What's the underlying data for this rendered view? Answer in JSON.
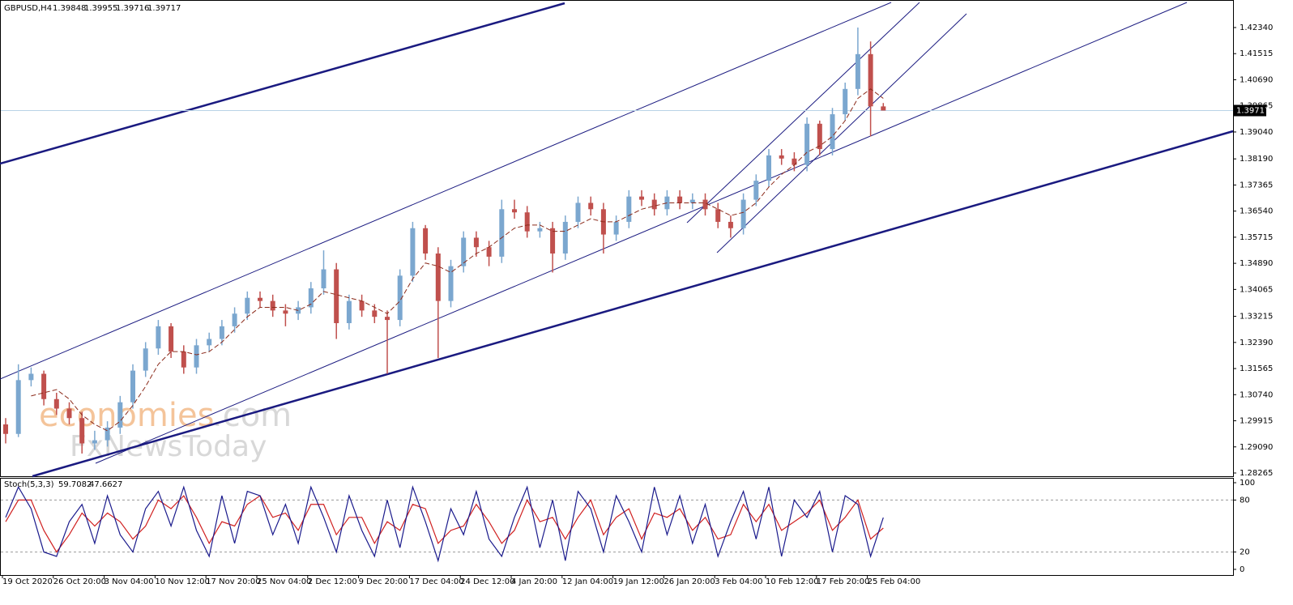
{
  "chart_data": [
    {
      "type": "candlestick",
      "title": "GBPUSD,H4",
      "color_up": "#7ba7cf",
      "color_down": "#c0504d",
      "ma_color": "#8b2a1a",
      "last_line_color": "#b9d3e6",
      "categories": [
        "19 Oct 2020",
        null,
        null,
        null,
        "26 Oct 20:00",
        null,
        null,
        null,
        "3 Nov 04:00",
        null,
        null,
        null,
        "10 Nov 12:00",
        null,
        null,
        null,
        "17 Nov 20:00",
        null,
        null,
        null,
        "25 Nov 04:00",
        null,
        null,
        null,
        "2 Dec 12:00",
        null,
        null,
        null,
        "9 Dec 20:00",
        null,
        null,
        null,
        "17 Dec 04:00",
        null,
        null,
        null,
        "24 Dec 12:00",
        null,
        null,
        null,
        "4 Jan 20:00",
        null,
        null,
        null,
        "12 Jan 04:00",
        null,
        null,
        null,
        "19 Jan 12:00",
        null,
        null,
        null,
        "26 Jan 20:00",
        null,
        null,
        null,
        "3 Feb 04:00",
        null,
        null,
        null,
        "10 Feb 12:00",
        null,
        null,
        null,
        "17 Feb 20:00",
        null,
        null,
        null,
        "25 Feb 04:00",
        null
      ],
      "open": [
        1.298,
        1.295,
        1.312,
        1.314,
        1.306,
        1.303,
        1.3,
        1.292,
        1.293,
        1.297,
        1.305,
        1.315,
        1.322,
        1.329,
        1.321,
        1.316,
        1.323,
        1.325,
        1.329,
        1.333,
        1.338,
        1.337,
        1.334,
        1.333,
        1.335,
        1.341,
        1.347,
        1.33,
        1.337,
        1.334,
        1.332,
        1.331,
        1.345,
        1.36,
        1.352,
        1.337,
        1.348,
        1.357,
        1.354,
        1.351,
        1.366,
        1.365,
        1.359,
        1.36,
        1.352,
        1.362,
        1.368,
        1.366,
        1.358,
        1.362,
        1.37,
        1.369,
        1.366,
        1.37,
        1.368,
        1.369,
        1.366,
        1.362,
        1.36,
        1.369,
        1.375,
        1.383,
        1.382,
        1.38,
        1.393,
        1.385,
        1.396,
        1.404,
        1.415,
        1.39848
      ],
      "high": [
        1.3,
        1.317,
        1.316,
        1.315,
        1.308,
        1.305,
        1.302,
        1.296,
        1.299,
        1.307,
        1.317,
        1.324,
        1.331,
        1.33,
        1.323,
        1.325,
        1.327,
        1.331,
        1.335,
        1.34,
        1.34,
        1.339,
        1.336,
        1.337,
        1.343,
        1.353,
        1.349,
        1.339,
        1.339,
        1.336,
        1.334,
        1.347,
        1.362,
        1.361,
        1.354,
        1.35,
        1.359,
        1.359,
        1.356,
        1.369,
        1.369,
        1.367,
        1.362,
        1.362,
        1.364,
        1.37,
        1.37,
        1.368,
        1.364,
        1.372,
        1.372,
        1.371,
        1.372,
        1.372,
        1.371,
        1.371,
        1.368,
        1.364,
        1.371,
        1.377,
        1.385,
        1.385,
        1.384,
        1.395,
        1.394,
        1.398,
        1.406,
        1.4234,
        1.419,
        1.39955
      ],
      "low": [
        1.292,
        1.294,
        1.31,
        1.304,
        1.301,
        1.298,
        1.2888,
        1.29,
        1.291,
        1.295,
        1.303,
        1.313,
        1.32,
        1.319,
        1.314,
        1.314,
        1.321,
        1.323,
        1.327,
        1.331,
        1.335,
        1.332,
        1.329,
        1.331,
        1.333,
        1.339,
        1.325,
        1.328,
        1.332,
        1.33,
        1.314,
        1.329,
        1.343,
        1.35,
        1.319,
        1.335,
        1.346,
        1.351,
        1.348,
        1.349,
        1.363,
        1.357,
        1.357,
        1.346,
        1.35,
        1.36,
        1.364,
        1.352,
        1.356,
        1.36,
        1.367,
        1.364,
        1.364,
        1.366,
        1.366,
        1.364,
        1.36,
        1.357,
        1.358,
        1.367,
        1.373,
        1.38,
        1.378,
        1.378,
        1.383,
        1.383,
        1.394,
        1.402,
        1.389,
        1.39716
      ],
      "close": [
        1.295,
        1.312,
        1.314,
        1.306,
        1.303,
        1.3,
        1.292,
        1.293,
        1.297,
        1.305,
        1.315,
        1.322,
        1.329,
        1.321,
        1.316,
        1.323,
        1.325,
        1.329,
        1.333,
        1.338,
        1.337,
        1.334,
        1.333,
        1.335,
        1.341,
        1.347,
        1.33,
        1.337,
        1.334,
        1.332,
        1.331,
        1.345,
        1.36,
        1.352,
        1.337,
        1.348,
        1.357,
        1.354,
        1.351,
        1.366,
        1.365,
        1.359,
        1.36,
        1.352,
        1.362,
        1.368,
        1.366,
        1.358,
        1.362,
        1.37,
        1.369,
        1.366,
        1.37,
        1.368,
        1.369,
        1.366,
        1.362,
        1.36,
        1.369,
        1.375,
        1.383,
        1.382,
        1.38,
        1.393,
        1.385,
        1.396,
        1.404,
        1.415,
        1.3985,
        1.39717
      ],
      "ma": [
        null,
        null,
        1.307,
        1.308,
        1.309,
        1.306,
        1.301,
        1.298,
        1.296,
        1.299,
        1.304,
        1.31,
        1.317,
        1.321,
        1.321,
        1.32,
        1.321,
        1.324,
        1.328,
        1.332,
        1.335,
        1.335,
        1.335,
        1.334,
        1.336,
        1.34,
        1.339,
        1.338,
        1.337,
        1.335,
        1.333,
        1.337,
        1.344,
        1.349,
        1.348,
        1.346,
        1.349,
        1.352,
        1.354,
        1.357,
        1.36,
        1.361,
        1.361,
        1.359,
        1.359,
        1.361,
        1.363,
        1.362,
        1.362,
        1.364,
        1.366,
        1.367,
        1.368,
        1.368,
        1.368,
        1.368,
        1.366,
        1.364,
        1.365,
        1.368,
        1.373,
        1.377,
        1.38,
        1.384,
        1.386,
        1.389,
        1.394,
        1.401,
        1.404,
        1.401
      ],
      "ylim": [
        1.28163,
        1.4321
      ],
      "yticks": [
        {
          "value": 1.4234,
          "label": "1.42340"
        },
        1.41515,
        {
          "value": 1.4069,
          "label": "1.40690"
        },
        1.39865,
        {
          "value": 1.3904,
          "label": "1.39040"
        },
        {
          "value": 1.3819,
          "label": "1.38190"
        },
        1.37365,
        {
          "value": 1.3654,
          "label": "1.36540"
        },
        1.35715,
        {
          "value": 1.3489,
          "label": "1.34890"
        },
        1.34065,
        1.33215,
        {
          "value": 1.3239,
          "label": "1.32390"
        },
        1.31565,
        {
          "value": 1.3074,
          "label": "1.30740"
        },
        1.29915,
        {
          "value": 1.2909,
          "label": "1.29090"
        },
        1.28265
      ]
    },
    {
      "type": "line",
      "title": "Stoch(5,3,3)",
      "series": [
        {
          "name": "Main",
          "color": "#1a1a8c",
          "values": [
            60,
            95,
            70,
            20,
            15,
            55,
            75,
            30,
            85,
            40,
            20,
            70,
            90,
            50,
            95,
            45,
            15,
            85,
            30,
            90,
            85,
            40,
            75,
            30,
            95,
            60,
            20,
            85,
            45,
            15,
            80,
            25,
            95,
            55,
            10,
            70,
            40,
            90,
            35,
            15,
            60,
            95,
            25,
            80,
            10,
            90,
            70,
            20,
            85,
            55,
            20,
            95,
            40,
            85,
            30,
            75,
            15,
            55,
            90,
            35,
            95,
            15,
            80,
            60,
            90,
            20,
            85,
            75,
            15,
            59.7082
          ]
        },
        {
          "name": "Signal",
          "color": "#d02020",
          "values": [
            55,
            80,
            80,
            45,
            20,
            40,
            65,
            50,
            65,
            55,
            35,
            50,
            80,
            70,
            85,
            60,
            30,
            55,
            50,
            75,
            85,
            60,
            65,
            45,
            75,
            75,
            40,
            60,
            60,
            30,
            55,
            45,
            75,
            70,
            30,
            45,
            50,
            75,
            55,
            30,
            45,
            80,
            55,
            60,
            35,
            60,
            80,
            40,
            60,
            70,
            35,
            65,
            60,
            70,
            45,
            60,
            35,
            40,
            75,
            55,
            75,
            45,
            55,
            65,
            80,
            45,
            60,
            80,
            35,
            47.6627
          ]
        }
      ],
      "ylim": [
        0,
        100
      ],
      "yticks": [
        0,
        20,
        80,
        100
      ],
      "grid_ticks": [
        20,
        80
      ]
    }
  ],
  "watermark": {
    "brand": "economies",
    "suffix": ".com",
    "line2": "FxNewsToday"
  }
}
